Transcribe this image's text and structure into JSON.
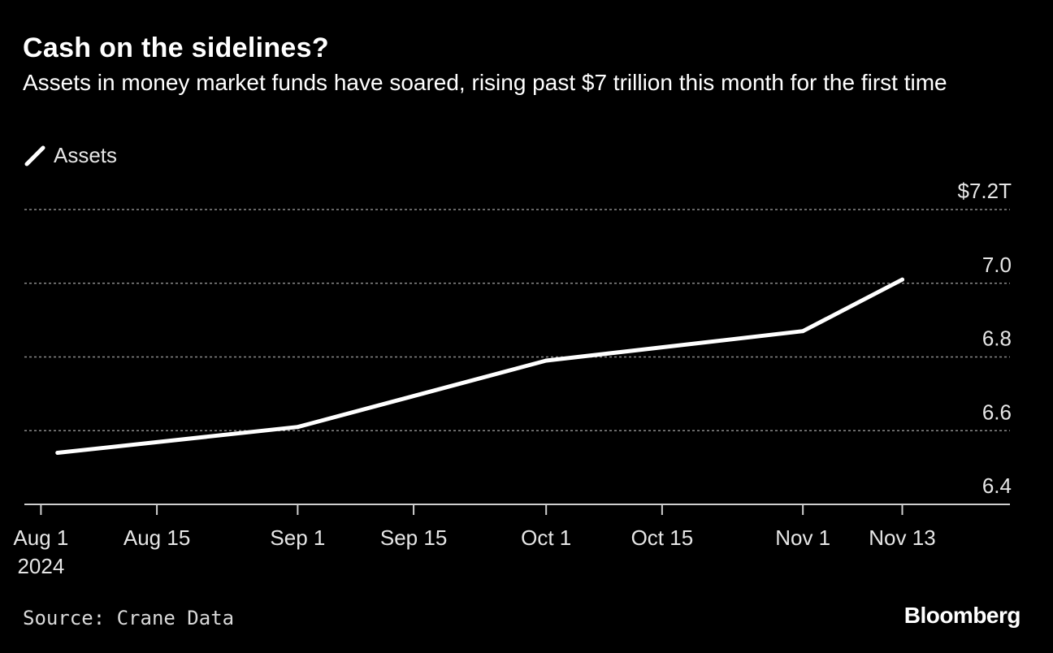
{
  "header": {
    "title": "Cash on the sidelines?",
    "subtitle": "Assets in money market funds have soared, rising past $7 trillion this month for the first time"
  },
  "legend": {
    "label": "Assets"
  },
  "footer": {
    "source": "Source: Crane Data",
    "brand": "Bloomberg"
  },
  "colors": {
    "background": "#000000",
    "line": "#ffffff",
    "grid": "#8a8a8a",
    "text": "#ffffff"
  },
  "chart_data": {
    "type": "line",
    "title": "Cash on the sidelines?",
    "xlabel": "",
    "ylabel": "",
    "ylim": [
      6.4,
      7.2
    ],
    "xlim_days": [
      -2,
      117
    ],
    "grid": true,
    "y_axis_side": "right",
    "legend_position": "top-left",
    "y_ticks": [
      {
        "value": 7.2,
        "label": "$7.2T"
      },
      {
        "value": 7.0,
        "label": "7.0"
      },
      {
        "value": 6.8,
        "label": "6.8"
      },
      {
        "value": 6.6,
        "label": "6.6"
      },
      {
        "value": 6.4,
        "label": "6.4"
      }
    ],
    "x_ticks": [
      {
        "day": 0,
        "label": "Aug 1",
        "sublabel": "2024"
      },
      {
        "day": 14,
        "label": "Aug 15",
        "sublabel": ""
      },
      {
        "day": 31,
        "label": "Sep 1",
        "sublabel": ""
      },
      {
        "day": 45,
        "label": "Sep 15",
        "sublabel": ""
      },
      {
        "day": 61,
        "label": "Oct 1",
        "sublabel": ""
      },
      {
        "day": 75,
        "label": "Oct 15",
        "sublabel": ""
      },
      {
        "day": 92,
        "label": "Nov 1",
        "sublabel": ""
      },
      {
        "day": 104,
        "label": "Nov 13",
        "sublabel": ""
      }
    ],
    "series": [
      {
        "name": "Assets",
        "x": [
          "Aug 3",
          "Sep 1",
          "Oct 1",
          "Nov 1",
          "Nov 13"
        ],
        "x_days": [
          2,
          31,
          61,
          92,
          104
        ],
        "values": [
          6.54,
          6.61,
          6.79,
          6.87,
          7.01
        ]
      }
    ]
  }
}
